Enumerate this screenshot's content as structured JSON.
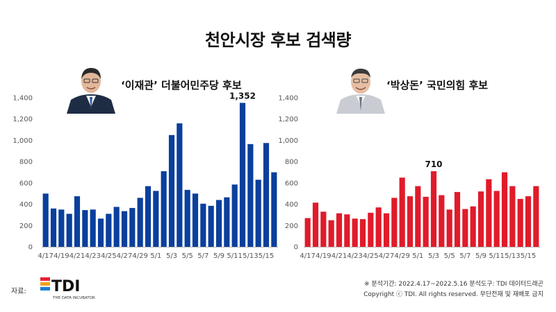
{
  "page": {
    "title": "천안시장 후보 검색량"
  },
  "footer": {
    "source_label": "자료:",
    "logo_text": "TDI",
    "logo_subtext": "THE DATA INCUBATOR",
    "period": "※ 분석기간: 2022.4.17~2022.5.16  분석도구: TDI 데이터드래곤",
    "copyright": "Copyright ⓒ TDI. All rights reserved. 무단전재 및 재배포 금지"
  },
  "colors": {
    "left_bar": "#0a3f9c",
    "right_bar": "#e01b2a",
    "logo_red": "#e8232f",
    "logo_orange": "#f5a11c",
    "logo_blue": "#1c7fd1"
  },
  "chart_data": [
    {
      "type": "bar",
      "title": "‘이재관’ 더불어민주당 후보",
      "color": "#0a3f9c",
      "categories": [
        "4/17",
        "4/18",
        "4/19",
        "4/20",
        "4/21",
        "4/22",
        "4/23",
        "4/24",
        "4/25",
        "4/26",
        "4/27",
        "4/28",
        "4/29",
        "4/30",
        "5/1",
        "5/2",
        "5/3",
        "5/4",
        "5/5",
        "5/6",
        "5/7",
        "5/8",
        "5/9",
        "5/10",
        "5/11",
        "5/12",
        "5/13",
        "5/14",
        "5/15",
        "5/16"
      ],
      "tick_labels": [
        "4/17",
        "4/19",
        "4/21",
        "4/23",
        "4/25",
        "4/27",
        "4/29",
        "5/1",
        "5/3",
        "5/5",
        "5/7",
        "5/9",
        "5/11",
        "5/13",
        "5/15"
      ],
      "values": [
        500,
        360,
        350,
        310,
        475,
        345,
        350,
        265,
        310,
        375,
        335,
        365,
        460,
        570,
        525,
        710,
        1050,
        1160,
        535,
        500,
        405,
        385,
        440,
        465,
        585,
        1352,
        965,
        630,
        975,
        700
      ],
      "y_ticks": [
        "0",
        "200",
        "400",
        "600",
        "800",
        "1,000",
        "1,200",
        "1,400"
      ],
      "ylim": [
        0,
        1400
      ],
      "annotation": {
        "index": 25,
        "text": "1,352"
      }
    },
    {
      "type": "bar",
      "title": "‘박상돈’ 국민의힘 후보",
      "color": "#e01b2a",
      "categories": [
        "4/17",
        "4/18",
        "4/19",
        "4/20",
        "4/21",
        "4/22",
        "4/23",
        "4/24",
        "4/25",
        "4/26",
        "4/27",
        "4/28",
        "4/29",
        "4/30",
        "5/1",
        "5/2",
        "5/3",
        "5/4",
        "5/5",
        "5/6",
        "5/7",
        "5/8",
        "5/9",
        "5/10",
        "5/11",
        "5/12",
        "5/13",
        "5/14",
        "5/15",
        "5/16"
      ],
      "tick_labels": [
        "4/17",
        "4/19",
        "4/21",
        "4/23",
        "4/25",
        "4/27",
        "4/29",
        "5/1",
        "5/3",
        "5/5",
        "5/7",
        "5/9",
        "5/11",
        "5/13",
        "5/15"
      ],
      "values": [
        270,
        415,
        330,
        250,
        315,
        305,
        265,
        260,
        320,
        370,
        315,
        460,
        650,
        475,
        570,
        470,
        710,
        485,
        350,
        515,
        355,
        380,
        520,
        635,
        525,
        700,
        570,
        450,
        475,
        570
      ],
      "y_ticks": [
        "0",
        "200",
        "400",
        "600",
        "800",
        "1,000",
        "1,200",
        "1,400"
      ],
      "ylim": [
        0,
        1400
      ],
      "annotation": {
        "index": 16,
        "text": "710"
      }
    }
  ]
}
